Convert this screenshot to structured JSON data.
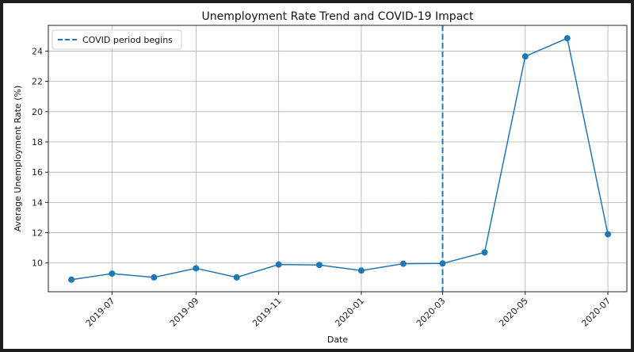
{
  "chart_data": {
    "type": "line",
    "title": "Unemployment Rate Trend and COVID-19 Impact",
    "xlabel": "Date",
    "ylabel": "Average Unemployment Rate (%)",
    "x_ticks": [
      "2019-07",
      "2019-09",
      "2019-11",
      "2020-01",
      "2020-03",
      "2020-05",
      "2020-07"
    ],
    "y_ticks": [
      10,
      12,
      14,
      16,
      18,
      20,
      22,
      24
    ],
    "ylim": [
      8.1,
      25.7
    ],
    "xlim": [
      "2019-05-15",
      "2020-07-15"
    ],
    "grid": true,
    "legend_position": "top-left",
    "series": [
      {
        "x": [
          "2019-06-01",
          "2019-07-01",
          "2019-08-01",
          "2019-09-01",
          "2019-10-01",
          "2019-11-01",
          "2019-12-01",
          "2020-01-01",
          "2020-02-01",
          "2020-03-01",
          "2020-04-01",
          "2020-05-01",
          "2020-06-01",
          "2020-07-01"
        ],
        "values": [
          8.9,
          9.3,
          9.05,
          9.65,
          9.05,
          9.9,
          9.87,
          9.5,
          9.95,
          9.97,
          10.7,
          23.65,
          24.85,
          11.9
        ],
        "color": "#1f77b4"
      }
    ],
    "annotations": [
      {
        "type": "vline",
        "x": "2020-03-01",
        "label": "COVID period begins",
        "style": "dashed",
        "color": "#1f77b4"
      }
    ]
  }
}
